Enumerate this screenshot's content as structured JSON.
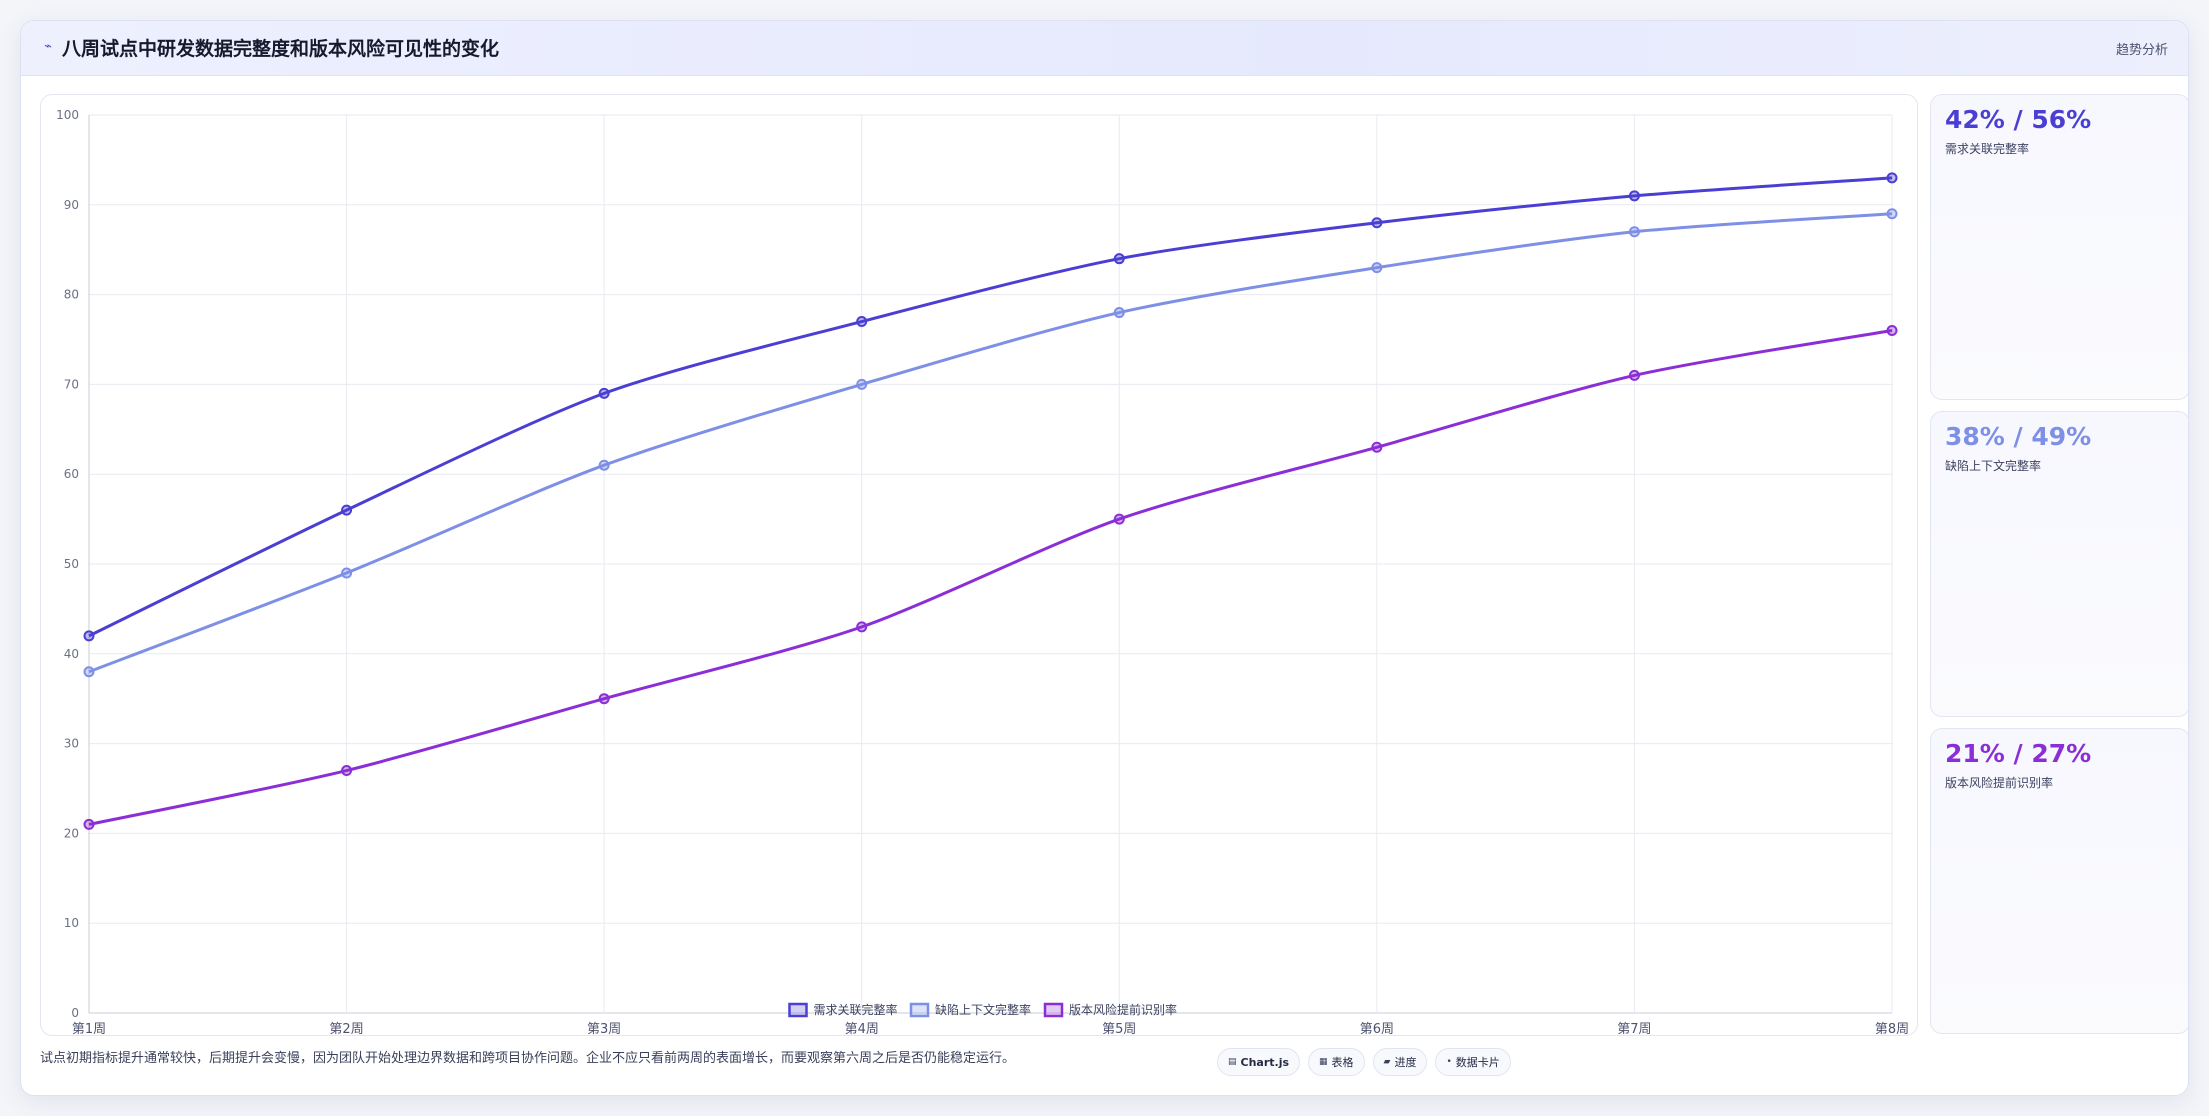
{
  "header": {
    "icon": "chart-trend-icon",
    "title": "八周试点中研发数据完整度和版本风险可见性的变化",
    "tag": "趋势分析"
  },
  "chart_data": {
    "type": "line",
    "categories": [
      "第1周",
      "第2周",
      "第3周",
      "第4周",
      "第5周",
      "第6周",
      "第7周",
      "第8周"
    ],
    "series": [
      {
        "name": "需求关联完整率",
        "values": [
          42,
          56,
          69,
          77,
          84,
          88,
          91,
          93
        ],
        "color": "#4b3fd3"
      },
      {
        "name": "缺陷上下文完整率",
        "values": [
          38,
          49,
          61,
          70,
          78,
          83,
          87,
          89
        ],
        "color": "#7e8fe6"
      },
      {
        "name": "版本风险提前识别率",
        "values": [
          21,
          27,
          35,
          43,
          55,
          63,
          71,
          76
        ],
        "color": "#8c2ed6"
      }
    ],
    "ylim": [
      0,
      100
    ],
    "yticks": [
      "0",
      "10",
      "20",
      "30",
      "40",
      "50",
      "60",
      "70",
      "80",
      "90",
      "100"
    ],
    "title": "",
    "xlabel": "",
    "ylabel": "",
    "grid": true,
    "legend": "bottom-center"
  },
  "stats": [
    {
      "value": "42% / 56%",
      "label": "需求关联完整率",
      "color": "#4b3fd3"
    },
    {
      "value": "38% / 49%",
      "label": "缺陷上下文完整率",
      "color": "#7e8fe6"
    },
    {
      "value": "21% / 27%",
      "label": "版本风险提前识别率",
      "color": "#8c2ed6"
    }
  ],
  "footnote": "试点初期指标提升通常较快，后期提升会变慢，因为团队开始处理边界数据和跨项目协作问题。企业不应只看前两周的表面增长，而要观察第六周之后是否仍能稳定运行。",
  "pills": [
    {
      "icon": "bar-chart-icon",
      "glyph": "▤",
      "label": "Chart.js"
    },
    {
      "icon": "table-icon",
      "glyph": "▦",
      "label": "表格"
    },
    {
      "icon": "progress-icon",
      "glyph": "▰",
      "label": "进度"
    },
    {
      "icon": "dot-icon",
      "glyph": "•",
      "label": "数据卡片"
    }
  ]
}
